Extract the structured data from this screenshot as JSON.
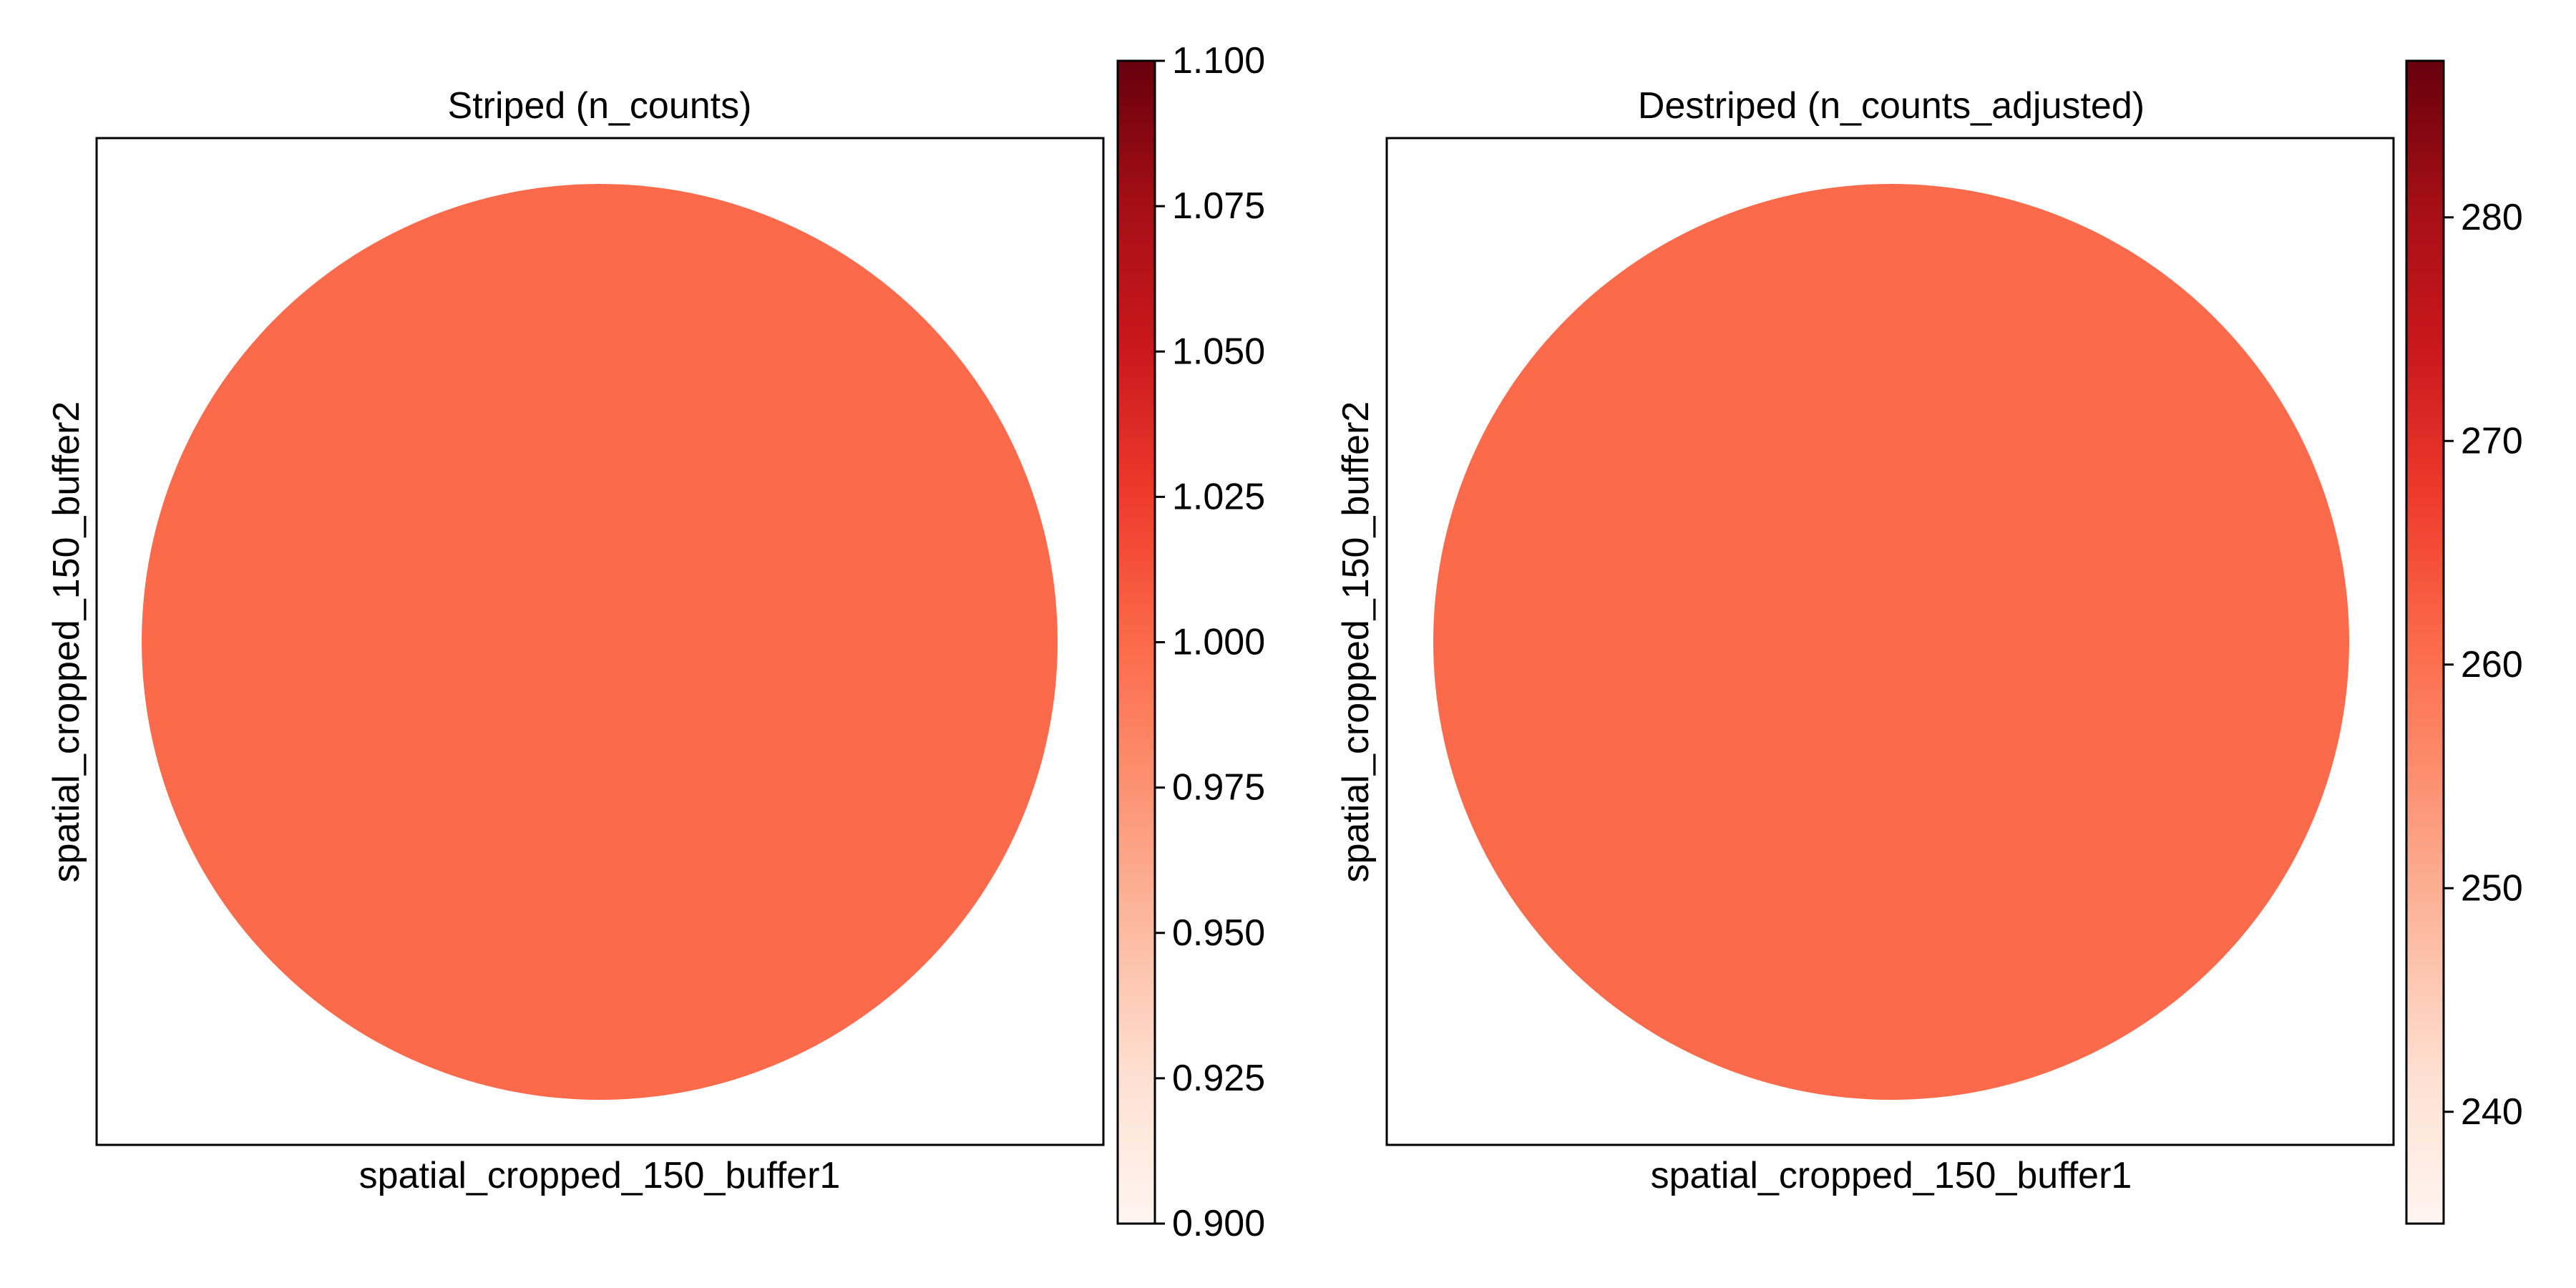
{
  "chart_data": [
    {
      "type": "scatter",
      "title": "Striped (n_counts)",
      "xlabel": "spatial_cropped_150_buffer1",
      "ylabel": "spatial_cropped_150_buffer2",
      "points": [
        {
          "value": 1.0
        }
      ],
      "point_color": "#fb6a4a",
      "colorbar": {
        "cmap": "Reds",
        "vmin": 0.9,
        "vmax": 1.1,
        "ticks": [
          0.9,
          0.925,
          0.95,
          0.975,
          1.0,
          1.025,
          1.05,
          1.075,
          1.1
        ],
        "tick_labels": [
          "0.900",
          "0.925",
          "0.950",
          "0.975",
          "1.000",
          "1.025",
          "1.050",
          "1.075",
          "1.100"
        ]
      },
      "grid": false
    },
    {
      "type": "scatter",
      "title": "Destriped (n_counts_adjusted)",
      "xlabel": "spatial_cropped_150_buffer1",
      "ylabel": "spatial_cropped_150_buffer2",
      "points": [
        {
          "value": 261.0
        }
      ],
      "point_color": "#fb6a4a",
      "colorbar": {
        "cmap": "Reds",
        "vmin": 235,
        "vmax": 287,
        "ticks": [
          240,
          250,
          260,
          270,
          280
        ],
        "tick_labels": [
          "240",
          "250",
          "260",
          "270",
          "280"
        ]
      },
      "grid": false
    }
  ],
  "colors": {
    "reds_cmap_stops": [
      "#fff5f0",
      "#fee0d2",
      "#fcbba1",
      "#fc9272",
      "#fb6a4a",
      "#ef3b2c",
      "#cb181d",
      "#a50f15",
      "#67000d"
    ]
  }
}
